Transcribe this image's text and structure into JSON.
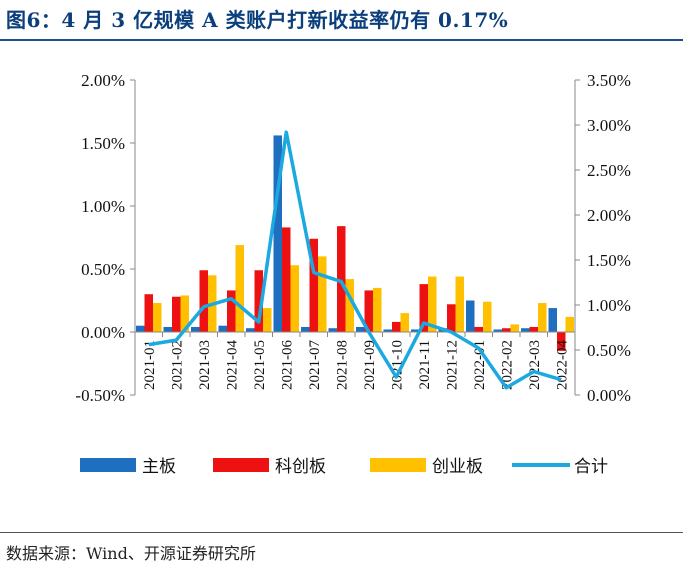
{
  "title": "图6：4 月 3 亿规模 A 类账户打新收益率仍有 0.17%",
  "source": "数据来源：Wind、开源证券研究所",
  "colors": {
    "main": "#1f6fc0",
    "star": "#ee1111",
    "gem": "#ffc000",
    "total": "#1ba9e0"
  },
  "chart_data": {
    "type": "bar",
    "categories": [
      "2021-01",
      "2021-02",
      "2021-03",
      "2021-04",
      "2021-05",
      "2021-06",
      "2021-07",
      "2021-08",
      "2021-09",
      "2021-10",
      "2021-11",
      "2021-12",
      "2022-01",
      "2022-02",
      "2022-03",
      "2022-04"
    ],
    "series": [
      {
        "name": "主板",
        "axis": "left",
        "type": "bar",
        "values": [
          0.05,
          0.04,
          0.04,
          0.05,
          0.03,
          1.56,
          0.04,
          0.03,
          0.04,
          0.02,
          0.02,
          0.03,
          0.25,
          0.02,
          0.03,
          0.19
        ]
      },
      {
        "name": "科创板",
        "axis": "left",
        "type": "bar",
        "values": [
          0.3,
          0.28,
          0.49,
          0.33,
          0.49,
          0.83,
          0.74,
          0.84,
          0.33,
          0.08,
          0.38,
          0.22,
          0.04,
          0.03,
          0.04,
          -0.15
        ]
      },
      {
        "name": "创业板",
        "axis": "left",
        "type": "bar",
        "values": [
          0.23,
          0.29,
          0.45,
          0.69,
          0.19,
          0.53,
          0.6,
          0.42,
          0.35,
          0.15,
          0.44,
          0.44,
          0.24,
          0.06,
          0.23,
          0.12
        ]
      },
      {
        "name": "合计",
        "axis": "right",
        "type": "line",
        "values": [
          0.56,
          0.61,
          0.98,
          1.07,
          0.81,
          2.92,
          1.36,
          1.26,
          0.7,
          0.2,
          0.8,
          0.7,
          0.52,
          0.08,
          0.26,
          0.17
        ]
      }
    ],
    "left_axis": {
      "ylim": [
        -0.5,
        2.0
      ],
      "ticks": [
        "-0.50%",
        "0.00%",
        "0.50%",
        "1.00%",
        "1.50%",
        "2.00%"
      ]
    },
    "right_axis": {
      "ylim": [
        0,
        3.5
      ],
      "ticks": [
        "0.00%",
        "0.50%",
        "1.00%",
        "1.50%",
        "2.00%",
        "2.50%",
        "3.00%",
        "3.50%"
      ]
    },
    "legend": [
      "主板",
      "科创板",
      "创业板",
      "合计"
    ],
    "legend_position": "bottom",
    "grid": false
  }
}
